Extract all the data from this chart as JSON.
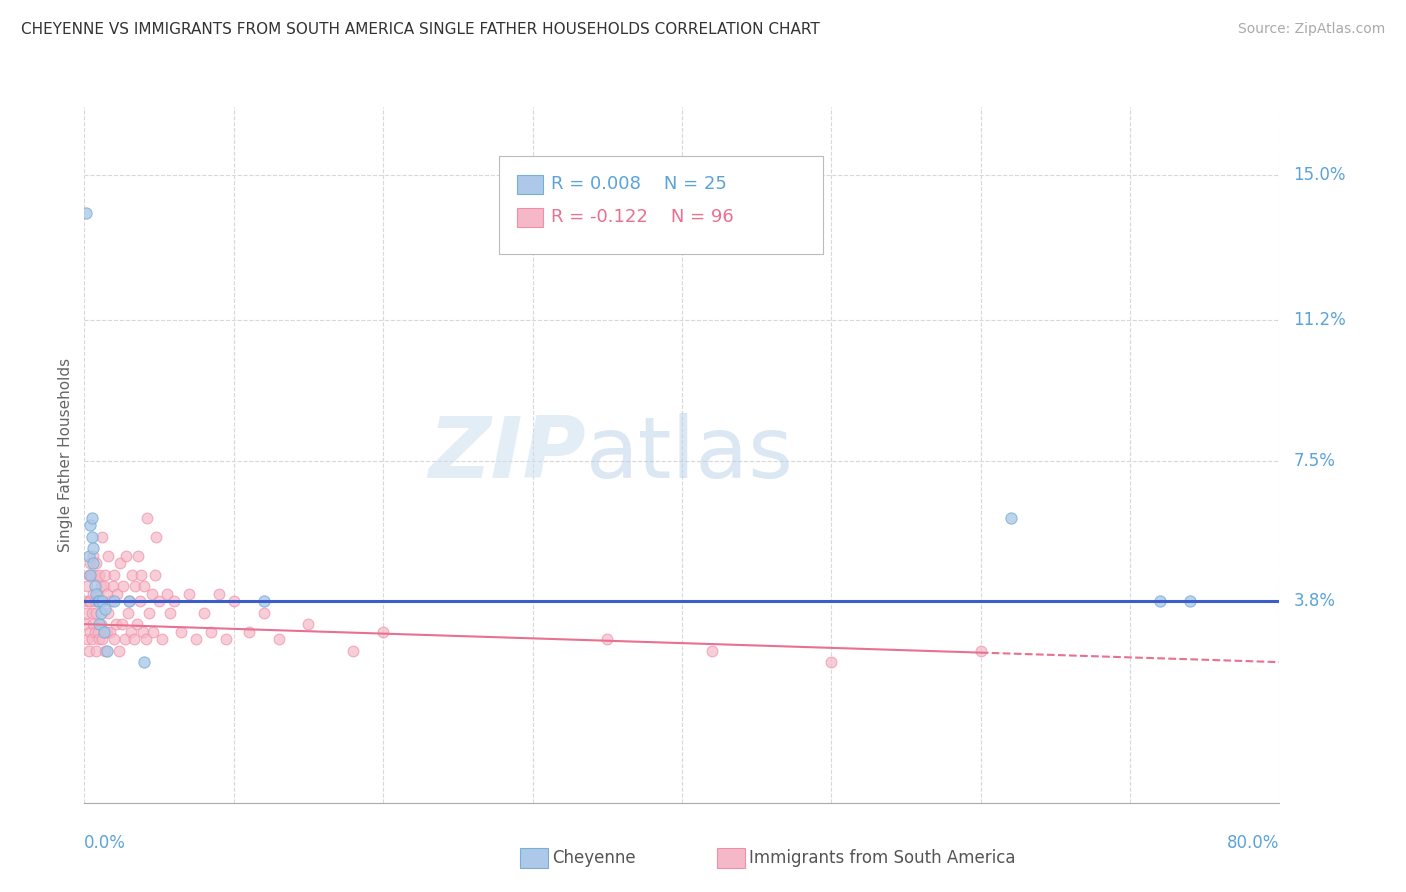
{
  "title": "CHEYENNE VS IMMIGRANTS FROM SOUTH AMERICA SINGLE FATHER HOUSEHOLDS CORRELATION CHART",
  "source": "Source: ZipAtlas.com",
  "ylabel": "Single Father Households",
  "ytick_vals": [
    0.038,
    0.075,
    0.112,
    0.15
  ],
  "ytick_labels": [
    "3.8%",
    "7.5%",
    "11.2%",
    "15.0%"
  ],
  "xmin": 0.0,
  "xmax": 0.8,
  "ymin": -0.015,
  "ymax": 0.168,
  "legend_r1": "0.008",
  "legend_n1": "25",
  "legend_r2": "-0.122",
  "legend_n2": "96",
  "color_cheyenne_fill": "#adc8e8",
  "color_cheyenne_edge": "#7aafd4",
  "color_immigrants_fill": "#f5b8c8",
  "color_immigrants_edge": "#f090a8",
  "color_blue_line": "#3a5fcd",
  "color_pink_line": "#e87090",
  "color_ytick": "#5ba3d9",
  "color_xtick": "#5ba3d9",
  "color_title": "#333333",
  "color_source": "#aaaaaa",
  "color_ylabel": "#666666",
  "color_legend_r1": "#5ba3d9",
  "color_legend_r2": "#e87090",
  "cheyenne_x": [
    0.001,
    0.003,
    0.004,
    0.004,
    0.005,
    0.005,
    0.006,
    0.006,
    0.007,
    0.008,
    0.009,
    0.01,
    0.01,
    0.011,
    0.012,
    0.013,
    0.014,
    0.015,
    0.02,
    0.03,
    0.04,
    0.12,
    0.62,
    0.72,
    0.74
  ],
  "cheyenne_y": [
    0.14,
    0.05,
    0.058,
    0.045,
    0.06,
    0.055,
    0.052,
    0.048,
    0.042,
    0.04,
    0.038,
    0.038,
    0.032,
    0.035,
    0.038,
    0.03,
    0.036,
    0.025,
    0.038,
    0.038,
    0.022,
    0.038,
    0.06,
    0.038,
    0.038
  ],
  "immigrants_x": [
    0.001,
    0.001,
    0.002,
    0.002,
    0.002,
    0.003,
    0.003,
    0.003,
    0.004,
    0.004,
    0.004,
    0.005,
    0.005,
    0.005,
    0.006,
    0.006,
    0.006,
    0.007,
    0.007,
    0.007,
    0.008,
    0.008,
    0.008,
    0.009,
    0.009,
    0.01,
    0.01,
    0.01,
    0.011,
    0.011,
    0.012,
    0.012,
    0.012,
    0.013,
    0.013,
    0.014,
    0.014,
    0.015,
    0.015,
    0.016,
    0.016,
    0.017,
    0.018,
    0.019,
    0.02,
    0.02,
    0.021,
    0.022,
    0.023,
    0.024,
    0.025,
    0.026,
    0.027,
    0.028,
    0.029,
    0.03,
    0.031,
    0.032,
    0.033,
    0.034,
    0.035,
    0.036,
    0.037,
    0.038,
    0.039,
    0.04,
    0.041,
    0.042,
    0.043,
    0.045,
    0.046,
    0.047,
    0.048,
    0.05,
    0.052,
    0.055,
    0.057,
    0.06,
    0.065,
    0.07,
    0.075,
    0.08,
    0.085,
    0.09,
    0.095,
    0.1,
    0.11,
    0.12,
    0.13,
    0.15,
    0.18,
    0.2,
    0.35,
    0.42,
    0.5,
    0.6
  ],
  "immigrants_y": [
    0.032,
    0.038,
    0.028,
    0.035,
    0.042,
    0.025,
    0.038,
    0.045,
    0.03,
    0.038,
    0.048,
    0.028,
    0.035,
    0.045,
    0.032,
    0.04,
    0.05,
    0.03,
    0.038,
    0.045,
    0.025,
    0.035,
    0.048,
    0.03,
    0.04,
    0.028,
    0.038,
    0.045,
    0.032,
    0.042,
    0.028,
    0.038,
    0.055,
    0.03,
    0.042,
    0.025,
    0.045,
    0.03,
    0.04,
    0.035,
    0.05,
    0.03,
    0.038,
    0.042,
    0.028,
    0.045,
    0.032,
    0.04,
    0.025,
    0.048,
    0.032,
    0.042,
    0.028,
    0.05,
    0.035,
    0.038,
    0.03,
    0.045,
    0.028,
    0.042,
    0.032,
    0.05,
    0.038,
    0.045,
    0.03,
    0.042,
    0.028,
    0.06,
    0.035,
    0.04,
    0.03,
    0.045,
    0.055,
    0.038,
    0.028,
    0.04,
    0.035,
    0.038,
    0.03,
    0.04,
    0.028,
    0.035,
    0.03,
    0.04,
    0.028,
    0.038,
    0.03,
    0.035,
    0.028,
    0.032,
    0.025,
    0.03,
    0.028,
    0.025,
    0.022,
    0.025
  ],
  "blue_line_y_start": 0.0382,
  "blue_line_y_end": 0.0382,
  "pink_line_y_start": 0.032,
  "pink_line_y_end": 0.022,
  "pink_line_x_solid_end": 0.6,
  "pink_line_x_dash_start": 0.6,
  "watermark_zip_color": "#c8dff0",
  "watermark_atlas_color": "#b0d0e8"
}
